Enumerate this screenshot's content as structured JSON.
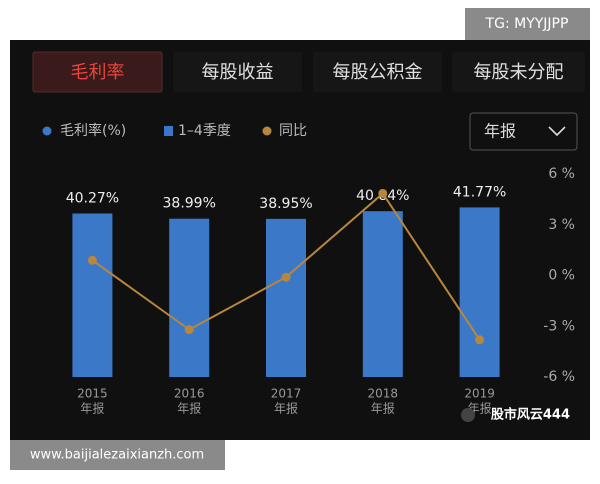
{
  "watermark_top": "TG: MYYJJPP",
  "watermark_bottom": "www.baijialezaixianzh.com",
  "watermark_wechat": "股市风云444",
  "tabs": [
    "毛利率",
    "每股收益",
    "每股公积金",
    "每股未分配"
  ],
  "dropdown": "年报",
  "chart_data": {
    "type": "bar",
    "categories": [
      "2015",
      "2016",
      "2017",
      "2018",
      "2019"
    ],
    "category_sublabels": [
      "年报",
      "年报",
      "年报",
      "年报",
      "年报"
    ],
    "legend": [
      "毛利率(%)",
      "1–4季度",
      "同比"
    ],
    "series": [
      {
        "name": "毛利率(%)",
        "type": "bar",
        "color": "#3b78c8",
        "values": [
          40.27,
          38.99,
          38.95,
          40.84,
          41.77
        ],
        "value_labels": [
          "40.27%",
          "38.99%",
          "38.95%",
          "40.84%",
          "41.77%"
        ]
      },
      {
        "name": "同比",
        "type": "line",
        "axis": "y2",
        "color": "#b8873e",
        "values": [
          0.9,
          -3.2,
          -0.1,
          4.85,
          -3.8
        ]
      }
    ],
    "ylim": [
      0,
      50
    ],
    "y2lim": [
      -6,
      6
    ],
    "y2ticks": [
      {
        "value": 6,
        "label": "6 %"
      },
      {
        "value": 3,
        "label": "3 %"
      },
      {
        "value": 0,
        "label": "0 %"
      },
      {
        "value": -3,
        "label": "-3 %"
      },
      {
        "value": -6,
        "label": "-6 %"
      }
    ]
  }
}
